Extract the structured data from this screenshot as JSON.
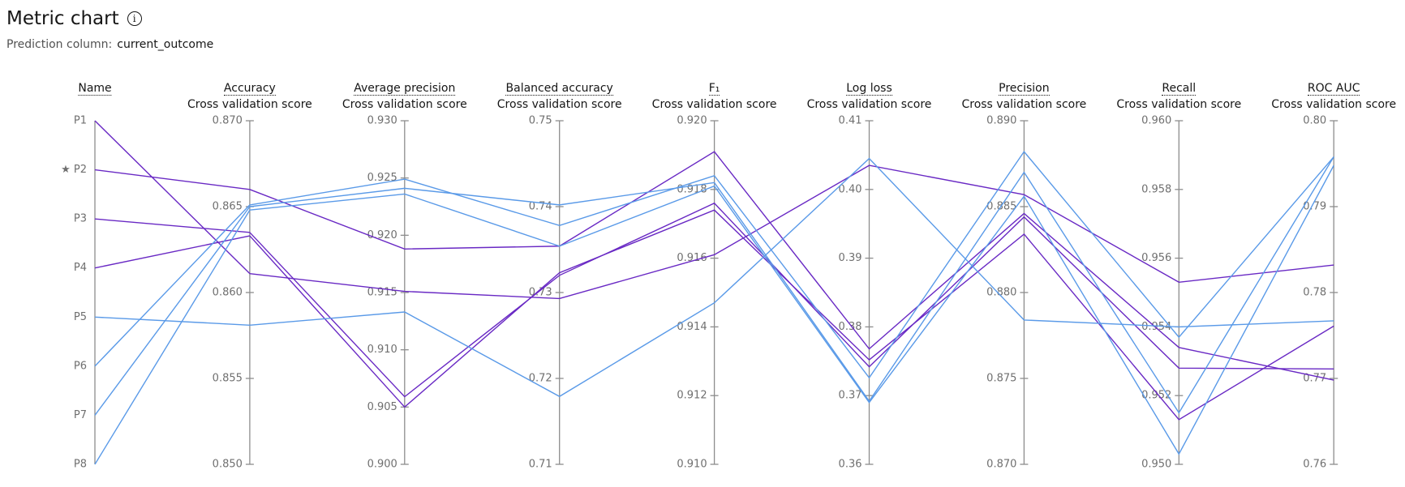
{
  "header": {
    "title": "Metric chart",
    "subtitle_label": "Prediction column:",
    "subtitle_value": "current_outcome"
  },
  "chart_data": {
    "type": "parallel",
    "name_axis_title": "Name",
    "axes": [
      {
        "title": "Accuracy",
        "subtitle": "Cross validation score",
        "ylim": [
          0.85,
          0.87
        ],
        "yticks": [
          {
            "value": 0.85,
            "label": "0.850"
          },
          0.855,
          {
            "value": 0.86,
            "label": "0.860"
          },
          0.865,
          {
            "value": 0.87,
            "label": "0.870"
          }
        ]
      },
      {
        "title": "Average precision",
        "subtitle": "Cross validation score",
        "ylim": [
          0.9,
          0.93
        ],
        "yticks": [
          {
            "value": 0.9,
            "label": "0.900"
          },
          0.905,
          {
            "value": 0.91,
            "label": "0.910"
          },
          0.915,
          {
            "value": 0.92,
            "label": "0.920"
          },
          0.925,
          {
            "value": 0.93,
            "label": "0.930"
          }
        ]
      },
      {
        "title": "Balanced accuracy",
        "subtitle": "Cross validation score",
        "ylim": [
          0.71,
          0.75
        ],
        "yticks": [
          0.71,
          0.72,
          0.73,
          0.74,
          0.75
        ]
      },
      {
        "title": "F₁",
        "subtitle": "Cross validation score",
        "ylim": [
          0.91,
          0.92
        ],
        "yticks": [
          {
            "value": 0.91,
            "label": "0.910"
          },
          0.912,
          0.914,
          0.916,
          0.918,
          {
            "value": 0.92,
            "label": "0.920"
          }
        ]
      },
      {
        "title": "Log loss",
        "subtitle": "Cross validation score",
        "ylim": [
          0.36,
          0.41
        ],
        "yticks": [
          0.36,
          0.37,
          0.38,
          0.39,
          {
            "value": 0.4,
            "label": "0.40"
          },
          0.41
        ]
      },
      {
        "title": "Precision",
        "subtitle": "Cross validation score",
        "ylim": [
          0.87,
          0.89
        ],
        "yticks": [
          {
            "value": 0.87,
            "label": "0.870"
          },
          0.875,
          {
            "value": 0.88,
            "label": "0.880"
          },
          0.885,
          {
            "value": 0.89,
            "label": "0.890"
          }
        ]
      },
      {
        "title": "Recall",
        "subtitle": "Cross validation score",
        "ylim": [
          0.95,
          0.96
        ],
        "yticks": [
          {
            "value": 0.95,
            "label": "0.950"
          },
          0.952,
          0.954,
          0.956,
          0.958,
          {
            "value": 0.96,
            "label": "0.960"
          }
        ]
      },
      {
        "title": "ROC AUC",
        "subtitle": "Cross validation score",
        "ylim": [
          0.76,
          0.8
        ],
        "yticks": [
          0.76,
          0.77,
          0.78,
          0.79,
          {
            "value": 0.8,
            "label": "0.80"
          }
        ]
      }
    ],
    "series": [
      {
        "name": "P1",
        "color": "#6929c4",
        "values": [
          0.8611,
          0.9151,
          0.7293,
          0.9161,
          0.4035,
          0.8857,
          0.9553,
          0.7832
        ]
      },
      {
        "name": "★ P2",
        "color": "#6929c4",
        "values": [
          0.866,
          0.9188,
          0.7354,
          0.9191,
          0.3768,
          0.8846,
          0.9534,
          0.7698
        ]
      },
      {
        "name": "P3",
        "color": "#6929c4",
        "values": [
          0.8635,
          0.9059,
          0.732,
          0.9176,
          0.3742,
          0.8844,
          0.9528,
          0.7711
        ]
      },
      {
        "name": "P4",
        "color": "#6929c4",
        "values": [
          0.8633,
          0.905,
          0.7323,
          0.9174,
          0.3752,
          0.8834,
          0.9513,
          0.7761
        ]
      },
      {
        "name": "P5",
        "color": "#5a9ae8",
        "values": [
          0.8581,
          0.9133,
          0.7179,
          0.9147,
          0.4045,
          0.8784,
          0.954,
          0.7767
        ]
      },
      {
        "name": "P6",
        "color": "#5a9ae8",
        "values": [
          0.8651,
          0.9249,
          0.7378,
          0.9184,
          0.3726,
          0.8882,
          0.9537,
          0.7958
        ]
      },
      {
        "name": "P7",
        "color": "#5a9ae8",
        "values": [
          0.865,
          0.9241,
          0.7402,
          0.9182,
          0.3692,
          0.887,
          0.9515,
          0.7958
        ]
      },
      {
        "name": "P8",
        "color": "#5a9ae8",
        "values": [
          0.8648,
          0.9236,
          0.7354,
          0.9181,
          0.369,
          0.8856,
          0.9503,
          0.7948
        ]
      }
    ]
  }
}
